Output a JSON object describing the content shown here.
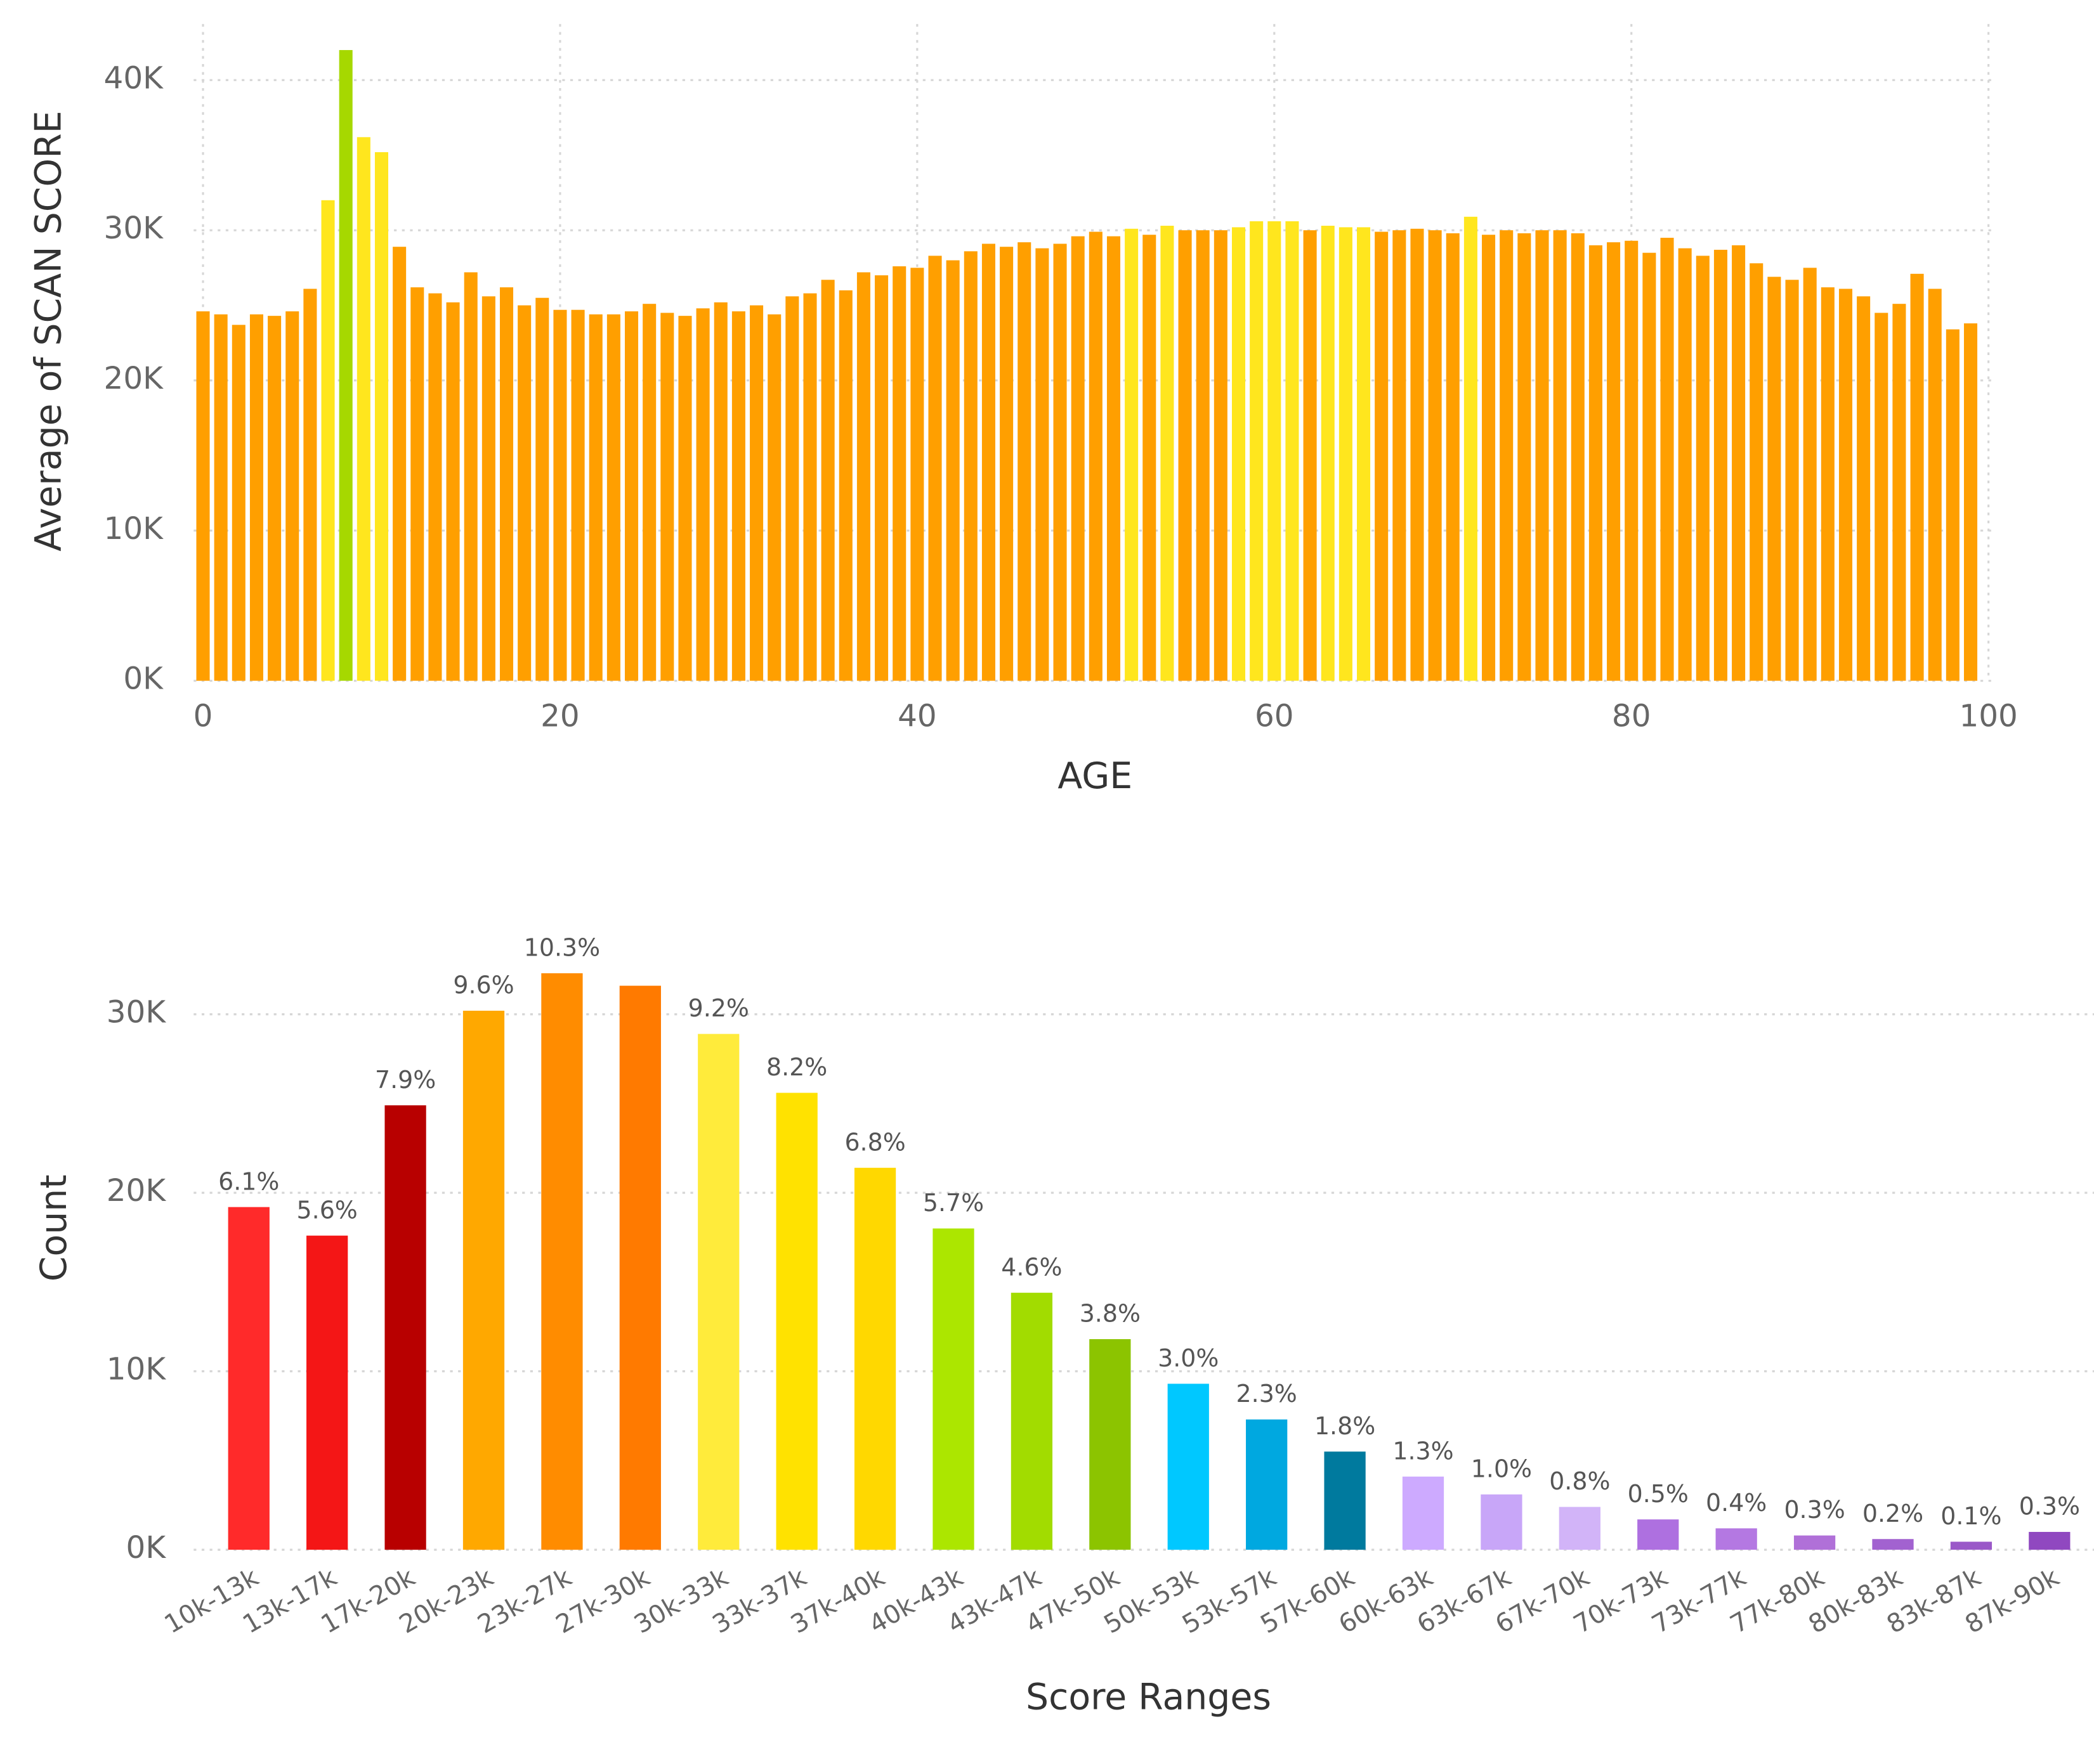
{
  "chart_data": [
    {
      "type": "bar",
      "x_label": "AGE",
      "y_label": "Average of SCAN SCORE",
      "x": [
        0,
        1,
        2,
        3,
        4,
        5,
        6,
        7,
        8,
        9,
        10,
        11,
        12,
        13,
        14,
        15,
        16,
        17,
        18,
        19,
        20,
        21,
        22,
        23,
        24,
        25,
        26,
        27,
        28,
        29,
        30,
        31,
        32,
        33,
        34,
        35,
        36,
        37,
        38,
        39,
        40,
        41,
        42,
        43,
        44,
        45,
        46,
        47,
        48,
        49,
        50,
        51,
        52,
        53,
        54,
        55,
        56,
        57,
        58,
        59,
        60,
        61,
        62,
        63,
        64,
        65,
        66,
        67,
        68,
        69,
        70,
        71,
        72,
        73,
        74,
        75,
        76,
        77,
        78,
        79,
        80,
        81,
        82,
        83,
        84,
        85,
        86,
        87,
        88,
        89,
        90,
        91,
        92,
        93,
        94,
        95,
        96,
        97,
        98,
        99
      ],
      "values": [
        24600,
        24400,
        23700,
        24400,
        24300,
        24600,
        26100,
        32000,
        42000,
        36200,
        35200,
        28900,
        26200,
        25800,
        25200,
        27200,
        25600,
        26200,
        25000,
        25500,
        24700,
        24700,
        24400,
        24400,
        24600,
        25100,
        24500,
        24300,
        24800,
        25200,
        24600,
        25000,
        24400,
        25600,
        25800,
        26700,
        26000,
        27200,
        27000,
        27600,
        27500,
        28300,
        28000,
        28600,
        29100,
        28900,
        29200,
        28800,
        29100,
        29600,
        29900,
        29600,
        30100,
        29700,
        30300,
        30000,
        30000,
        30000,
        30200,
        30600,
        30600,
        30600,
        30000,
        30300,
        30200,
        30200,
        29900,
        30000,
        30100,
        30000,
        29800,
        30900,
        29700,
        30000,
        29800,
        30000,
        30000,
        29800,
        29000,
        29200,
        29300,
        28500,
        29500,
        28800,
        28300,
        28700,
        29000,
        27800,
        26900,
        26700,
        27500,
        26200,
        26100,
        25600,
        24500,
        25100,
        27100,
        26100,
        23400,
        23800
      ],
      "colors": [
        "#FF9F00",
        "#FF9F00",
        "#FF9F00",
        "#FF9F00",
        "#FF9F00",
        "#FF9F00",
        "#FF9F00",
        "#FFE61E",
        "#A6D800",
        "#FFE61E",
        "#FFE61E",
        "#FF9F00",
        "#FF9F00",
        "#FF9F00",
        "#FF9F00",
        "#FF9F00",
        "#FF9F00",
        "#FF9F00",
        "#FF9F00",
        "#FF9F00",
        "#FF9F00",
        "#FF9F00",
        "#FF9F00",
        "#FF9F00",
        "#FF9F00",
        "#FF9F00",
        "#FF9F00",
        "#FF9F00",
        "#FF9F00",
        "#FF9F00",
        "#FF9F00",
        "#FF9F00",
        "#FF9F00",
        "#FF9F00",
        "#FF9F00",
        "#FF9F00",
        "#FF9F00",
        "#FF9F00",
        "#FF9F00",
        "#FF9F00",
        "#FF9F00",
        "#FF9F00",
        "#FF9F00",
        "#FF9F00",
        "#FF9F00",
        "#FF9F00",
        "#FF9F00",
        "#FF9F00",
        "#FF9F00",
        "#FF9F00",
        "#FF9F00",
        "#FF9F00",
        "#FFE61E",
        "#FF9F00",
        "#FFE61E",
        "#FF9F00",
        "#FF9F00",
        "#FF9F00",
        "#FFE61E",
        "#FFE61E",
        "#FFE61E",
        "#FFE61E",
        "#FF9F00",
        "#FFE61E",
        "#FFE61E",
        "#FFE61E",
        "#FF9F00",
        "#FF9F00",
        "#FF9F00",
        "#FF9F00",
        "#FF9F00",
        "#FFE61E",
        "#FF9F00",
        "#FF9F00",
        "#FF9F00",
        "#FF9F00",
        "#FF9F00",
        "#FF9F00",
        "#FF9F00",
        "#FF9F00",
        "#FF9F00",
        "#FF9F00",
        "#FF9F00",
        "#FF9F00",
        "#FF9F00",
        "#FF9F00",
        "#FF9F00",
        "#FF9F00",
        "#FF9F00",
        "#FF9F00",
        "#FF9F00",
        "#FF9F00",
        "#FF9F00",
        "#FF9F00",
        "#FF9F00",
        "#FF9F00",
        "#FF9F00",
        "#FF9F00",
        "#FF9F00",
        "#FF9F00"
      ],
      "xlim": [
        0,
        100
      ],
      "xticks": [
        0,
        20,
        40,
        60,
        80,
        100
      ],
      "ylim": [
        0,
        42000
      ],
      "yticks": [
        {
          "value": 0,
          "label": "0K"
        },
        {
          "value": 10000,
          "label": "10K"
        },
        {
          "value": 20000,
          "label": "20K"
        },
        {
          "value": 30000,
          "label": "30K"
        },
        {
          "value": 40000,
          "label": "40K"
        }
      ],
      "grid": true
    },
    {
      "type": "bar",
      "x_label": "Score Ranges",
      "y_label": "Count",
      "categories": [
        "10k-13k",
        "13k-17k",
        "17k-20k",
        "20k-23k",
        "23k-27k",
        "27k-30k",
        "30k-33k",
        "33k-37k",
        "37k-40k",
        "40k-43k",
        "43k-47k",
        "47k-50k",
        "50k-53k",
        "53k-57k",
        "57k-60k",
        "60k-63k",
        "63k-67k",
        "67k-70k",
        "70k-73k",
        "73k-77k",
        "77k-80k",
        "80k-83k",
        "83k-87k",
        "87k-90k"
      ],
      "values": [
        19200,
        17600,
        24900,
        30200,
        32300,
        31600,
        28900,
        25600,
        21400,
        18000,
        14400,
        11800,
        9300,
        7300,
        5500,
        4100,
        3100,
        2400,
        1700,
        1200,
        800,
        600,
        450,
        1000
      ],
      "value_labels": [
        "6.1%",
        "5.6%",
        "7.9%",
        "9.6%",
        "10.3%",
        null,
        "9.2%",
        "8.2%",
        "6.8%",
        "5.7%",
        "4.6%",
        "3.8%",
        "3.0%",
        "2.3%",
        "1.8%",
        "1.3%",
        "1.0%",
        "0.8%",
        "0.5%",
        "0.4%",
        "0.3%",
        "0.2%",
        "0.1%",
        "0.3%"
      ],
      "colors": [
        "#FF2A2A",
        "#F41616",
        "#B80000",
        "#FFA800",
        "#FF8C00",
        "#FF7A00",
        "#FFEB3B",
        "#FFE200",
        "#FFD800",
        "#ACE600",
        "#A2DC00",
        "#8CC400",
        "#00C8FF",
        "#00A8E0",
        "#007A9E",
        "#CDAAFF",
        "#C8A6F8",
        "#D2B4F8",
        "#AE70E0",
        "#B478E2",
        "#B070D8",
        "#A262D0",
        "#9A58C8",
        "#9048C0"
      ],
      "ylim": [
        0,
        35000
      ],
      "yticks": [
        {
          "value": 0,
          "label": "0K"
        },
        {
          "value": 10000,
          "label": "10K"
        },
        {
          "value": 20000,
          "label": "20K"
        },
        {
          "value": 30000,
          "label": "30K"
        }
      ],
      "grid": true
    }
  ]
}
